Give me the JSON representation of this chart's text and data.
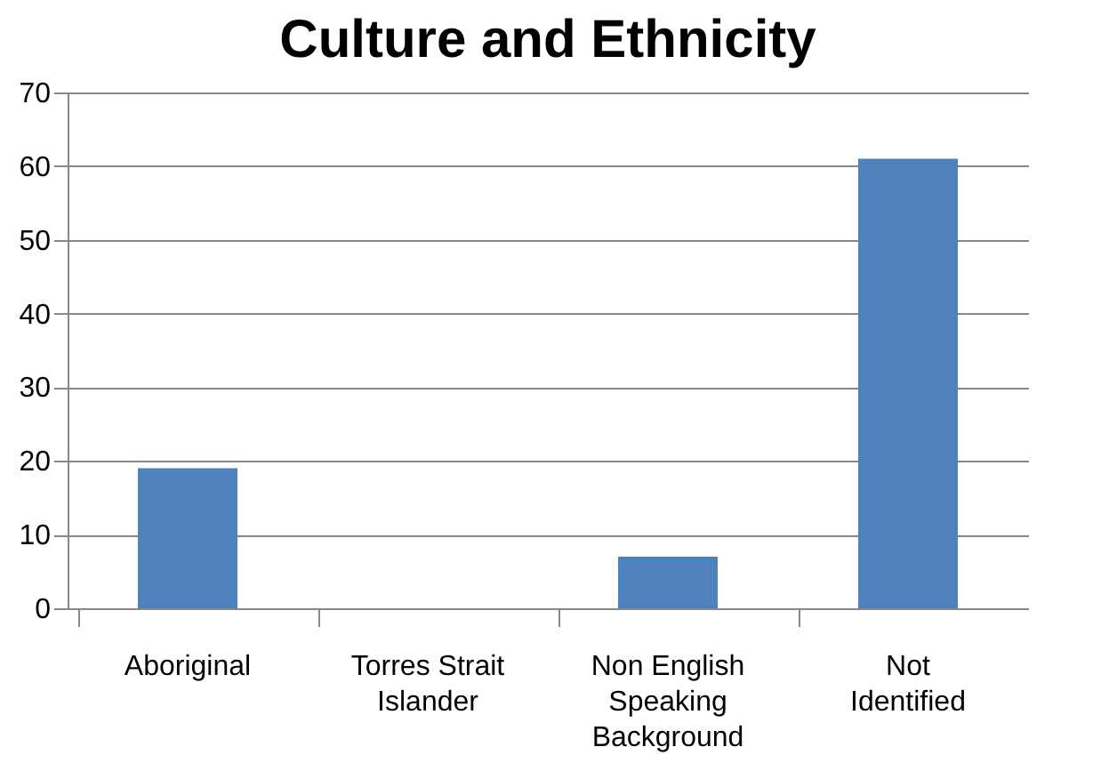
{
  "chart_data": {
    "type": "bar",
    "title": "Culture and Ethnicity",
    "categories": [
      "Aboriginal",
      "Torres Strait Islander",
      "Non English Speaking Background",
      "Not Identified"
    ],
    "values": [
      19,
      0,
      7,
      61
    ],
    "color": "#4f81bd",
    "ylim": [
      0,
      70
    ],
    "yticks": [
      0,
      10,
      20,
      30,
      40,
      50,
      60,
      70
    ],
    "grid": "y"
  }
}
